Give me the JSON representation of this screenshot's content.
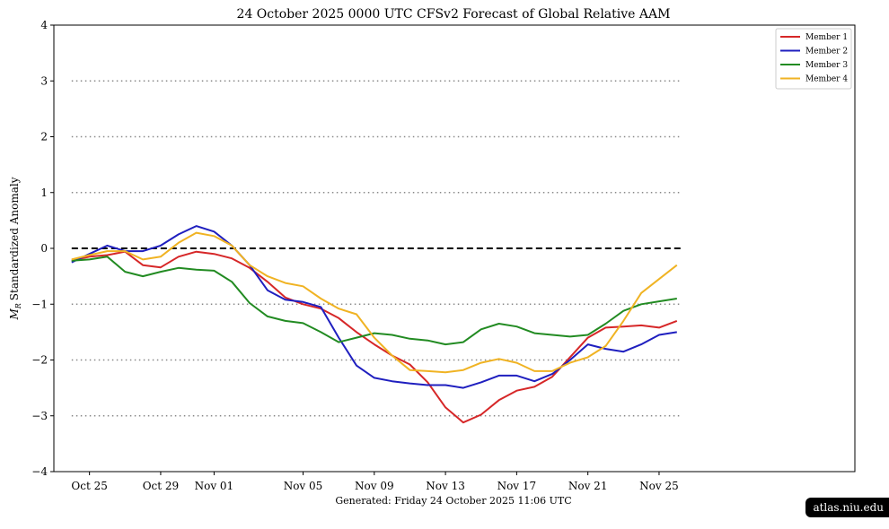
{
  "footer": "Generated: Friday  24  October  2025  11:06 UTC",
  "badge": "atlas.niu.edu",
  "chart_data": {
    "type": "line",
    "title": "24  October  2025 0000 UTC   CFSv2 Forecast of Global Relative AAM",
    "ylabel": "Standardized Anomaly",
    "ylabel_symbol": "M",
    "ylabel_subscript": "R",
    "xlabel": "",
    "ylim": [
      -4,
      4
    ],
    "xlim": [
      -1,
      44
    ],
    "yticks": [
      4,
      3,
      2,
      1,
      0,
      -1,
      -2,
      -3,
      -4
    ],
    "ytick_labels": [
      "4",
      "3",
      "2",
      "1",
      "0",
      "−1",
      "−2",
      "−3",
      "−4"
    ],
    "xticks": [
      1,
      5,
      8,
      13,
      17,
      21,
      25,
      29,
      33
    ],
    "xtick_labels": [
      "Oct 25",
      "Oct 29",
      "Nov 01",
      "Nov 05",
      "Nov 09",
      "Nov 13",
      "Nov 17",
      "Nov 21",
      "Nov 25"
    ],
    "x_axis_note": "x values are days from 24 October 2025 0000 UTC",
    "gridlines_y": [
      3,
      2,
      1,
      -1,
      -2,
      -3
    ],
    "zero_line": 0,
    "legend_position": "top-right",
    "x": [
      0,
      1,
      2,
      3,
      4,
      5,
      6,
      7,
      8,
      9,
      10,
      11,
      12,
      13,
      14,
      15,
      16,
      17,
      18,
      19,
      20,
      21,
      22,
      23,
      24,
      25,
      26,
      27,
      28,
      29,
      30,
      31,
      32,
      33,
      34
    ],
    "series": [
      {
        "name": "Member 1",
        "color": "#d62728",
        "values": [
          -0.22,
          -0.15,
          -0.12,
          -0.06,
          -0.3,
          -0.34,
          -0.15,
          -0.06,
          -0.1,
          -0.18,
          -0.35,
          -0.6,
          -0.88,
          -1.0,
          -1.08,
          -1.25,
          -1.5,
          -1.72,
          -1.92,
          -2.08,
          -2.4,
          -2.85,
          -3.12,
          -2.98,
          -2.72,
          -2.55,
          -2.48,
          -2.3,
          -1.95,
          -1.6,
          -1.42,
          -1.4,
          -1.38,
          -1.42,
          -1.3
        ]
      },
      {
        "name": "Member 2",
        "color": "#1f1fbf",
        "values": [
          -0.25,
          -0.1,
          0.05,
          -0.05,
          -0.05,
          0.05,
          0.25,
          0.4,
          0.3,
          0.05,
          -0.3,
          -0.75,
          -0.92,
          -0.96,
          -1.05,
          -1.6,
          -2.1,
          -2.32,
          -2.38,
          -2.42,
          -2.45,
          -2.45,
          -2.5,
          -2.4,
          -2.28,
          -2.28,
          -2.38,
          -2.25,
          -2.0,
          -1.72,
          -1.8,
          -1.85,
          -1.72,
          -1.55,
          -1.5
        ]
      },
      {
        "name": "Member 3",
        "color": "#228b22",
        "values": [
          -0.22,
          -0.2,
          -0.15,
          -0.42,
          -0.5,
          -0.42,
          -0.35,
          -0.38,
          -0.4,
          -0.6,
          -0.98,
          -1.22,
          -1.3,
          -1.34,
          -1.5,
          -1.68,
          -1.6,
          -1.52,
          -1.55,
          -1.62,
          -1.65,
          -1.72,
          -1.68,
          -1.45,
          -1.35,
          -1.4,
          -1.52,
          -1.55,
          -1.58,
          -1.55,
          -1.35,
          -1.12,
          -1.0,
          -0.95,
          -0.9
        ]
      },
      {
        "name": "Member 4",
        "color": "#f0b323",
        "values": [
          -0.2,
          -0.12,
          -0.05,
          -0.05,
          -0.2,
          -0.15,
          0.1,
          0.28,
          0.22,
          0.05,
          -0.3,
          -0.5,
          -0.62,
          -0.68,
          -0.9,
          -1.08,
          -1.18,
          -1.6,
          -1.92,
          -2.18,
          -2.2,
          -2.22,
          -2.18,
          -2.05,
          -1.98,
          -2.05,
          -2.2,
          -2.2,
          -2.05,
          -1.95,
          -1.75,
          -1.3,
          -0.8,
          -0.55,
          -0.3
        ]
      }
    ]
  }
}
